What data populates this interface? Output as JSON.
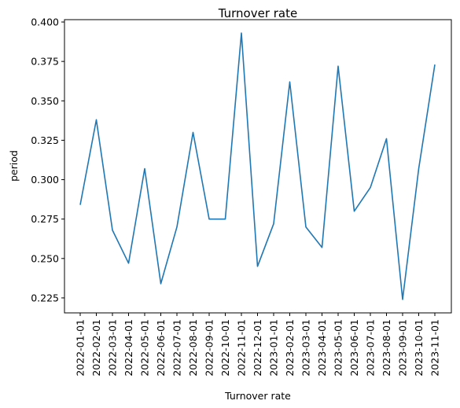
{
  "chart_data": {
    "type": "line",
    "title": "Turnover rate",
    "xlabel": "Turnover rate",
    "ylabel": "period",
    "x": [
      "2022-01-01",
      "2022-02-01",
      "2022-03-01",
      "2022-04-01",
      "2022-05-01",
      "2022-06-01",
      "2022-07-01",
      "2022-08-01",
      "2022-09-01",
      "2022-10-01",
      "2022-11-01",
      "2022-12-01",
      "2023-01-01",
      "2023-02-01",
      "2023-03-01",
      "2023-04-01",
      "2023-05-01",
      "2023-06-01",
      "2023-07-01",
      "2023-08-01",
      "2023-09-01",
      "2023-10-01",
      "2023-11-01"
    ],
    "series": [
      {
        "values": [
          0.284,
          0.338,
          0.268,
          0.247,
          0.307,
          0.234,
          0.27,
          0.33,
          0.275,
          0.275,
          0.393,
          0.245,
          0.272,
          0.362,
          0.27,
          0.257,
          0.372,
          0.28,
          0.295,
          0.326,
          0.224,
          0.307,
          0.373
        ],
        "color": "#1f77b4"
      }
    ],
    "yticks": [
      "0.225",
      "0.250",
      "0.275",
      "0.300",
      "0.325",
      "0.350",
      "0.375",
      "0.400"
    ],
    "ylim": [
      0.2155,
      0.4015
    ],
    "grid": false,
    "legend": "none"
  }
}
